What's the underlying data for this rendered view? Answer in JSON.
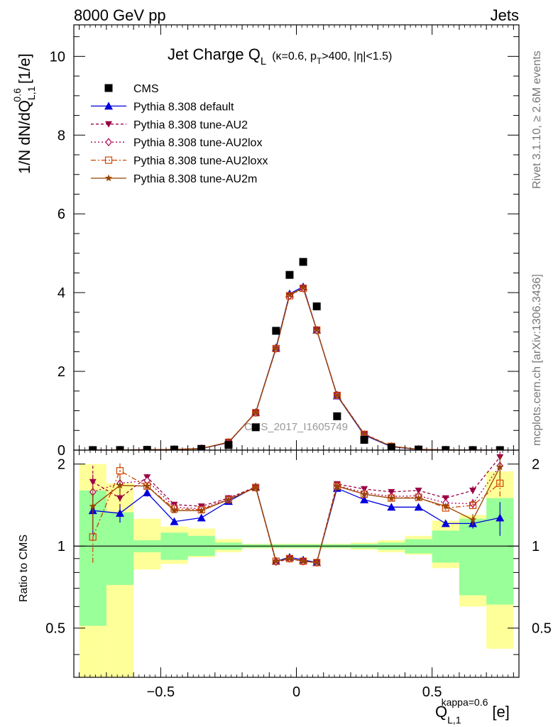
{
  "header": {
    "energy_label": "8000 GeV pp",
    "category_label": "Jets"
  },
  "side_text": {
    "rivet": "Rivet 3.1.10, ≥ 2.6M events",
    "mcplots": "mcplots.cern.ch [arXiv:1306.3436]"
  },
  "watermark": "CMS_2017_I1605749",
  "colors": {
    "cms": "#000000",
    "default": "#0000dd",
    "au2": "#990044",
    "au2lox": "#aa0055",
    "au2loxx": "#cc4400",
    "au2m": "#994400",
    "band_yellow": "#ffff99",
    "band_green": "#99ff99"
  },
  "chart_data": {
    "type": "scatter",
    "title_main": "Jet Charge Q",
    "title_sub": "L",
    "title_cuts_a": "(κ=0.6, p",
    "title_cuts_sub": "T",
    "title_cuts_b": ">400, |η|<1.5)",
    "ylabel_main": "1/N dN/dQ",
    "ylabel_sup": "0.6",
    "ylabel_sub": "L,1",
    "ylabel_unit": "[1/e]",
    "xlabel_main": "Q",
    "xlabel_sup": "kappa=0.6",
    "xlabel_sub": "L,1",
    "xlabel_unit": "[e]",
    "ratio_ylabel": "Ratio to CMS",
    "xlim": [
      -0.82,
      0.82
    ],
    "ylim": [
      0,
      10.8
    ],
    "ratio_ylim": [
      0.33,
      2.25
    ],
    "main_yticks": [
      "0",
      "2",
      "4",
      "6",
      "8",
      "10"
    ],
    "ratio_yticks": [
      "0.5",
      "1",
      "2"
    ],
    "xticks": [
      "−0.5",
      "0",
      "0.5"
    ],
    "x": [
      -0.75,
      -0.65,
      -0.55,
      -0.45,
      -0.35,
      -0.25,
      -0.15,
      -0.075,
      -0.025,
      0.025,
      0.075,
      0.15,
      0.25,
      0.35,
      0.45,
      0.55,
      0.65,
      0.75
    ],
    "bin_edges": [
      -0.8,
      -0.7,
      -0.6,
      -0.5,
      -0.4,
      -0.3,
      -0.2,
      -0.1,
      -0.05,
      0.0,
      0.05,
      0.1,
      0.2,
      0.3,
      0.4,
      0.5,
      0.6,
      0.7,
      0.8
    ],
    "legend": [
      {
        "key": "cms",
        "label": "CMS"
      },
      {
        "key": "default",
        "label": "Pythia 8.308 default"
      },
      {
        "key": "au2",
        "label": "Pythia 8.308 tune-AU2"
      },
      {
        "key": "au2lox",
        "label": "Pythia 8.308 tune-AU2lox"
      },
      {
        "key": "au2loxx",
        "label": "Pythia 8.308 tune-AU2loxx"
      },
      {
        "key": "au2m",
        "label": "Pythia 8.308 tune-AU2m"
      }
    ],
    "data_values": [
      0.0005,
      0.002,
      0.006,
      0.013,
      0.03,
      0.13,
      0.58,
      3.03,
      4.45,
      4.78,
      3.65,
      0.86,
      0.26,
      0.065,
      0.014,
      0.003,
      0.0008,
      0.0003
    ],
    "series": [
      {
        "key": "default",
        "values": [
          0.0007,
          0.003,
          0.01,
          0.017,
          0.039,
          0.19,
          0.96,
          2.6,
          3.97,
          4.15,
          3.05,
          1.38,
          0.38,
          0.086,
          0.017,
          0.004,
          0.001,
          0.0004
        ],
        "ratio": [
          1.35,
          1.32,
          1.57,
          1.23,
          1.27,
          1.46,
          1.65,
          0.88,
          0.91,
          0.89,
          0.87,
          1.63,
          1.48,
          1.39,
          1.39,
          1.21,
          1.21,
          1.27
        ]
      },
      {
        "key": "au2",
        "values": [
          0.0009,
          0.003,
          0.011,
          0.018,
          0.04,
          0.2,
          0.96,
          2.57,
          3.93,
          4.12,
          3.05,
          1.4,
          0.41,
          0.1,
          0.021,
          0.0046,
          0.0013,
          0.0006
        ],
        "ratio": [
          1.72,
          1.5,
          1.79,
          1.42,
          1.4,
          1.5,
          1.65,
          0.87,
          0.9,
          0.88,
          0.87,
          1.69,
          1.62,
          1.58,
          1.6,
          1.5,
          1.6,
          2.12
        ]
      },
      {
        "key": "au2lox",
        "values": [
          0.0008,
          0.004,
          0.01,
          0.018,
          0.04,
          0.2,
          0.95,
          2.58,
          3.92,
          4.11,
          3.04,
          1.4,
          0.4,
          0.096,
          0.02,
          0.0043,
          0.0011,
          0.0005
        ],
        "ratio": [
          1.58,
          1.7,
          1.74,
          1.39,
          1.37,
          1.49,
          1.64,
          0.88,
          0.9,
          0.88,
          0.87,
          1.67,
          1.57,
          1.52,
          1.53,
          1.44,
          1.43,
          1.97
        ]
      },
      {
        "key": "au2loxx",
        "values": [
          0.0005,
          0.004,
          0.01,
          0.018,
          0.039,
          0.2,
          0.95,
          2.58,
          3.92,
          4.11,
          3.05,
          1.39,
          0.4,
          0.095,
          0.02,
          0.004,
          0.0011,
          0.0005
        ],
        "ratio": [
          1.08,
          1.89,
          1.66,
          1.37,
          1.36,
          1.48,
          1.64,
          0.88,
          0.9,
          0.88,
          0.87,
          1.66,
          1.55,
          1.5,
          1.51,
          1.38,
          1.41,
          1.7
        ]
      },
      {
        "key": "au2m",
        "values": [
          0.0007,
          0.003,
          0.01,
          0.017,
          0.04,
          0.2,
          0.95,
          2.58,
          3.94,
          4.12,
          3.05,
          1.39,
          0.4,
          0.095,
          0.02,
          0.0042,
          0.001,
          0.0006
        ],
        "ratio": [
          1.4,
          1.67,
          1.66,
          1.35,
          1.35,
          1.48,
          1.64,
          0.88,
          0.9,
          0.88,
          0.87,
          1.66,
          1.55,
          1.5,
          1.5,
          1.4,
          1.25,
          1.95
        ]
      }
    ],
    "ratio_errors": {
      "default": [
        0.25,
        0.1,
        0.05,
        0.03,
        0.02,
        0.02,
        0,
        0,
        0,
        0,
        0,
        0,
        0,
        0,
        0.02,
        0.03,
        0.05,
        0.18
      ],
      "au2": [
        0.25,
        0.12,
        0.05,
        0.03,
        0.02,
        0.02,
        0,
        0,
        0,
        0,
        0,
        0,
        0,
        0,
        0.02,
        0.03,
        0.06,
        0.2
      ],
      "au2lox": [
        0.25,
        0.12,
        0.05,
        0.03,
        0.02,
        0.02,
        0,
        0,
        0,
        0,
        0,
        0,
        0,
        0,
        0.02,
        0.03,
        0.06,
        0.2
      ],
      "au2loxx": [
        0.22,
        0.12,
        0.05,
        0.03,
        0.02,
        0.02,
        0,
        0,
        0,
        0,
        0,
        0,
        0,
        0,
        0.02,
        0.03,
        0.06,
        0.2
      ],
      "au2m": [
        0.25,
        0.12,
        0.05,
        0.03,
        0.02,
        0.02,
        0,
        0,
        0,
        0,
        0,
        0,
        0,
        0,
        0.02,
        0.03,
        0.06,
        0.2
      ]
    },
    "band_green": [
      [
        0.51,
        1.6
      ],
      [
        0.72,
        1.33
      ],
      [
        0.95,
        1.05
      ],
      [
        0.89,
        1.12
      ],
      [
        0.92,
        1.09
      ],
      [
        0.97,
        1.03
      ],
      [
        0.985,
        1.015
      ],
      [
        0.985,
        1.015
      ],
      [
        0.985,
        1.015
      ],
      [
        0.985,
        1.015
      ],
      [
        0.985,
        1.015
      ],
      [
        0.985,
        1.015
      ],
      [
        0.98,
        1.02
      ],
      [
        0.97,
        1.03
      ],
      [
        0.94,
        1.06
      ],
      [
        0.87,
        1.14
      ],
      [
        0.66,
        1.26
      ],
      [
        0.61,
        1.5
      ]
    ],
    "band_yellow": [
      [
        0.33,
        2.0
      ],
      [
        0.33,
        1.7
      ],
      [
        0.82,
        1.26
      ],
      [
        0.86,
        1.18
      ],
      [
        0.91,
        1.16
      ],
      [
        0.95,
        1.06
      ],
      [
        0.98,
        1.02
      ],
      [
        0.98,
        1.02
      ],
      [
        0.98,
        1.02
      ],
      [
        0.98,
        1.02
      ],
      [
        0.98,
        1.02
      ],
      [
        0.98,
        1.02
      ],
      [
        0.97,
        1.03
      ],
      [
        0.95,
        1.05
      ],
      [
        0.93,
        1.09
      ],
      [
        0.83,
        1.24
      ],
      [
        0.6,
        1.3
      ],
      [
        0.42,
        1.88
      ]
    ]
  }
}
